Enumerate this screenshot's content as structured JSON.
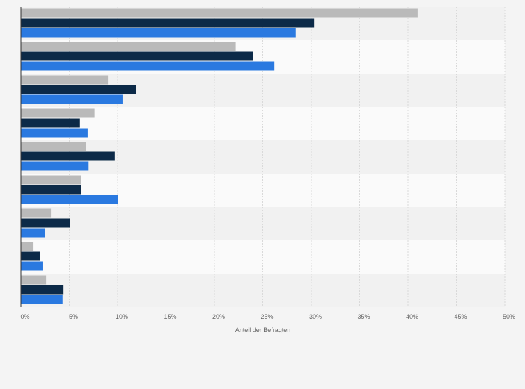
{
  "chart_data": {
    "type": "bar",
    "orientation": "horizontal",
    "xlabel": "Anteil der Befragten",
    "xlim": [
      0,
      50
    ],
    "x_ticks": [
      0,
      5,
      10,
      15,
      20,
      25,
      30,
      35,
      40,
      45,
      50
    ],
    "x_tick_labels": [
      "0%",
      "5%",
      "10%",
      "15%",
      "20%",
      "25%",
      "30%",
      "35%",
      "40%",
      "45%",
      "50%"
    ],
    "grid": true,
    "categories": [
      "",
      "",
      "",
      "",
      "",
      "",
      "",
      "",
      ""
    ],
    "series": [
      {
        "color": "#bababa",
        "values": [
          41,
          22.2,
          9,
          7.6,
          6.7,
          6.2,
          3.1,
          1.3,
          2.6
        ]
      },
      {
        "color": "#0c2a48",
        "values": [
          30.3,
          24,
          11.9,
          6.1,
          9.7,
          6.2,
          5.1,
          2,
          4.4
        ]
      },
      {
        "color": "#2a79e0",
        "values": [
          28.4,
          26.2,
          10.5,
          6.9,
          7,
          10,
          2.5,
          2.3,
          4.3
        ]
      }
    ]
  }
}
